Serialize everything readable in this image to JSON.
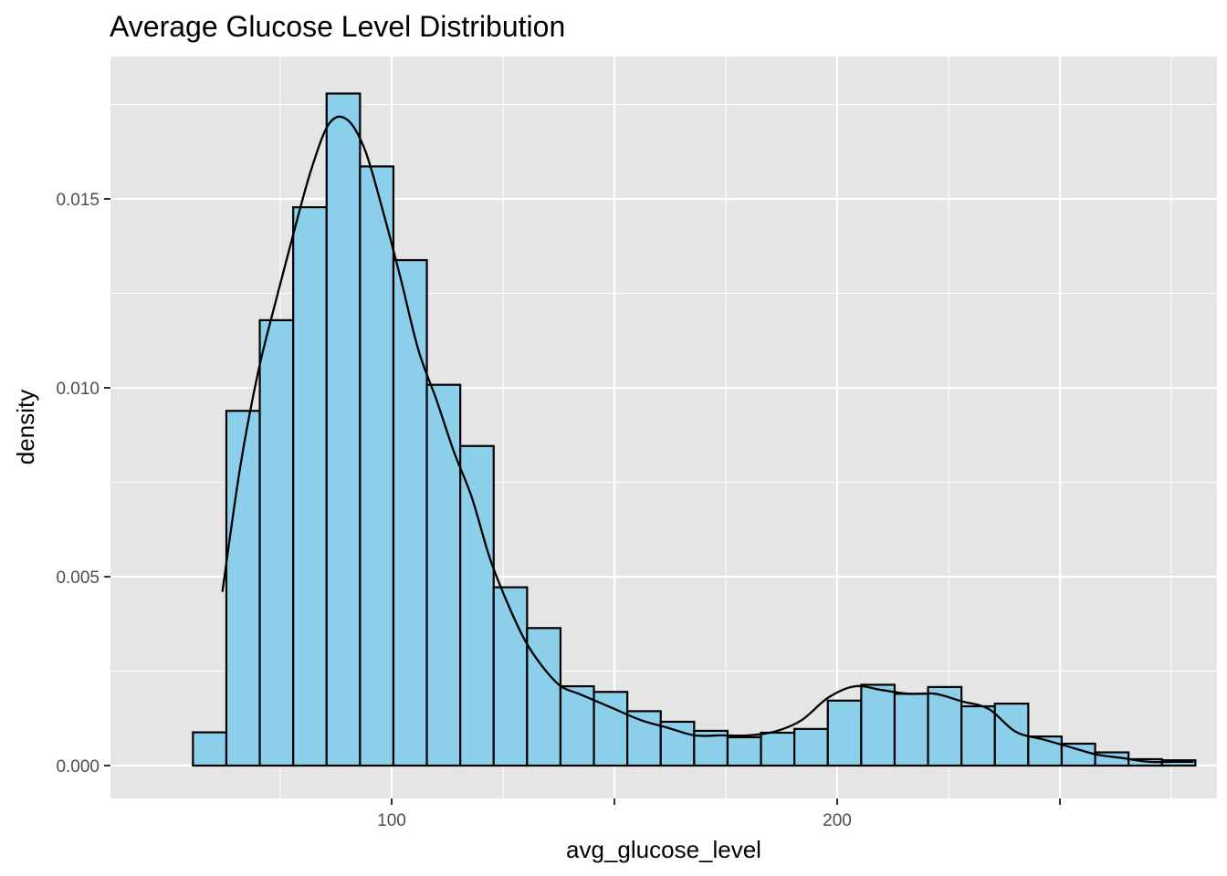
{
  "chart_data": {
    "type": "bar",
    "title": "Average Glucose Level Distribution",
    "xlabel": "avg_glucose_level",
    "ylabel": "density",
    "xlim": [
      50.0,
      290.0
    ],
    "ylim": [
      -0.00085,
      0.01875
    ],
    "x_ticks": [
      100,
      150,
      200,
      250
    ],
    "x_tick_labels": [
      "100",
      "",
      "200",
      ""
    ],
    "y_ticks": [
      0.0,
      0.005,
      0.01,
      0.015
    ],
    "y_tick_labels": [
      "0.000",
      "0.005",
      "0.010",
      "0.015"
    ],
    "bin_width": 7.5,
    "bins": [
      {
        "start": 55.4,
        "end": 62.9,
        "density": 0.00088
      },
      {
        "start": 62.9,
        "end": 70.4,
        "density": 0.00939
      },
      {
        "start": 70.4,
        "end": 77.9,
        "density": 0.01179
      },
      {
        "start": 77.9,
        "end": 85.4,
        "density": 0.01478
      },
      {
        "start": 85.4,
        "end": 92.9,
        "density": 0.01779
      },
      {
        "start": 92.9,
        "end": 100.4,
        "density": 0.01586
      },
      {
        "start": 100.4,
        "end": 107.9,
        "density": 0.01338
      },
      {
        "start": 107.9,
        "end": 115.4,
        "density": 0.01008
      },
      {
        "start": 115.4,
        "end": 122.9,
        "density": 0.00846
      },
      {
        "start": 122.9,
        "end": 130.4,
        "density": 0.00472
      },
      {
        "start": 130.4,
        "end": 137.9,
        "density": 0.00364
      },
      {
        "start": 137.9,
        "end": 145.4,
        "density": 0.0021
      },
      {
        "start": 145.4,
        "end": 152.9,
        "density": 0.00195
      },
      {
        "start": 152.9,
        "end": 160.4,
        "density": 0.00144
      },
      {
        "start": 160.4,
        "end": 167.9,
        "density": 0.00116
      },
      {
        "start": 167.9,
        "end": 175.4,
        "density": 0.00092
      },
      {
        "start": 175.4,
        "end": 182.9,
        "density": 0.00075
      },
      {
        "start": 182.9,
        "end": 190.4,
        "density": 0.00087
      },
      {
        "start": 190.4,
        "end": 197.9,
        "density": 0.00097
      },
      {
        "start": 197.9,
        "end": 205.4,
        "density": 0.00172
      },
      {
        "start": 205.4,
        "end": 212.9,
        "density": 0.00214
      },
      {
        "start": 212.9,
        "end": 220.4,
        "density": 0.0019
      },
      {
        "start": 220.4,
        "end": 227.9,
        "density": 0.00208
      },
      {
        "start": 227.9,
        "end": 235.4,
        "density": 0.00157
      },
      {
        "start": 235.4,
        "end": 242.9,
        "density": 0.00164
      },
      {
        "start": 242.9,
        "end": 250.4,
        "density": 0.00077
      },
      {
        "start": 250.4,
        "end": 257.9,
        "density": 0.00058
      },
      {
        "start": 257.9,
        "end": 265.4,
        "density": 0.00035
      },
      {
        "start": 265.4,
        "end": 272.9,
        "density": 0.00017
      },
      {
        "start": 272.9,
        "end": 280.4,
        "density": 0.00014
      }
    ],
    "density_curve": {
      "x": [
        62.0,
        66.0,
        70.0,
        74.0,
        78.0,
        82.0,
        86.0,
        90.0,
        94.0,
        98.0,
        102.0,
        106.0,
        110.0,
        114.0,
        118.0,
        122.0,
        126.0,
        130.0,
        134.0,
        138.0,
        142.0,
        146.0,
        150.0,
        156.0,
        162.0,
        168.0,
        174.0,
        180.0,
        186.0,
        192.0,
        198.0,
        204.0,
        210.0,
        216.0,
        222.0,
        228.0,
        234.0,
        240.0,
        246.0,
        252.0,
        258.0,
        264.0,
        270.0,
        276.0,
        280.0
      ],
      "y": [
        0.0046,
        0.0079,
        0.0104,
        0.0123,
        0.0141,
        0.0158,
        0.017,
        0.0171,
        0.0163,
        0.0147,
        0.0129,
        0.011,
        0.0097,
        0.0083,
        0.0071,
        0.0055,
        0.0043,
        0.0033,
        0.0026,
        0.0021,
        0.0019,
        0.0017,
        0.0015,
        0.0012,
        0.001,
        0.0008,
        0.0008,
        0.0008,
        0.0009,
        0.0012,
        0.0018,
        0.0021,
        0.002,
        0.0019,
        0.0019,
        0.0017,
        0.0015,
        0.0009,
        0.0007,
        0.0005,
        0.0003,
        0.0002,
        0.0001,
        0.0001,
        0.0001
      ]
    },
    "colors": {
      "bar_fill": "#87CEEB",
      "bar_outline": "#000000",
      "panel_background": "#E5E5E5",
      "gridline": "#FFFFFF",
      "curve": "#000000"
    },
    "grid": true,
    "legend": "none"
  }
}
